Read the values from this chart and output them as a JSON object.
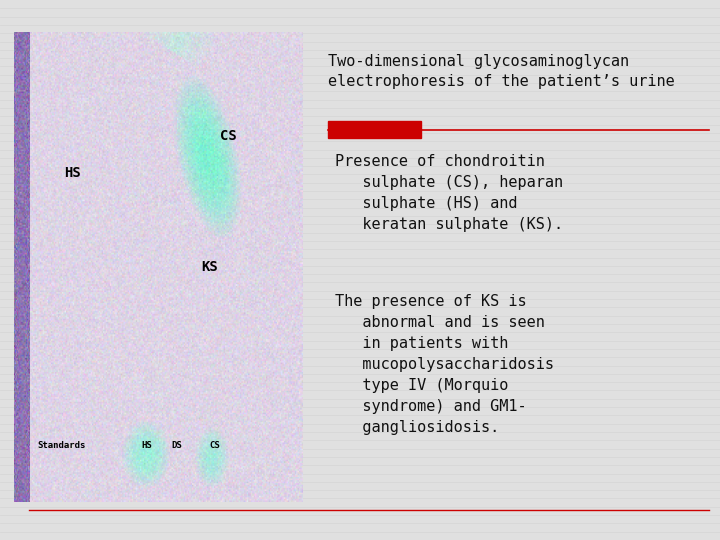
{
  "background_color": "#e0e0e0",
  "title_text": "Two-dimensional glycosaminoglycan\nelectrophoresis of the patient’s urine",
  "title_fontsize": 11.0,
  "title_color": "#111111",
  "title_font": "monospace",
  "red_bar_color": "#cc0000",
  "bullet1_lines": [
    "Presence of chondroitin",
    "   sulphate (CS), heparan",
    "   sulphate (HS) and",
    "   keratan sulphate (KS)."
  ],
  "bullet2_lines": [
    "The presence of KS is",
    "   abnormal and is seen",
    "   in patients with",
    "   mucopolysaccharidosis",
    "   type IV (Morquio",
    "   syndrome) and GM1-",
    "   gangliosidosis."
  ],
  "text_fontsize": 11.0,
  "text_color": "#111111",
  "text_font": "monospace",
  "horizontal_line_color": "#cc0000",
  "bottom_line_color": "#cc0000",
  "stripe_color": "#cccccc",
  "stripe_alpha": 0.5
}
